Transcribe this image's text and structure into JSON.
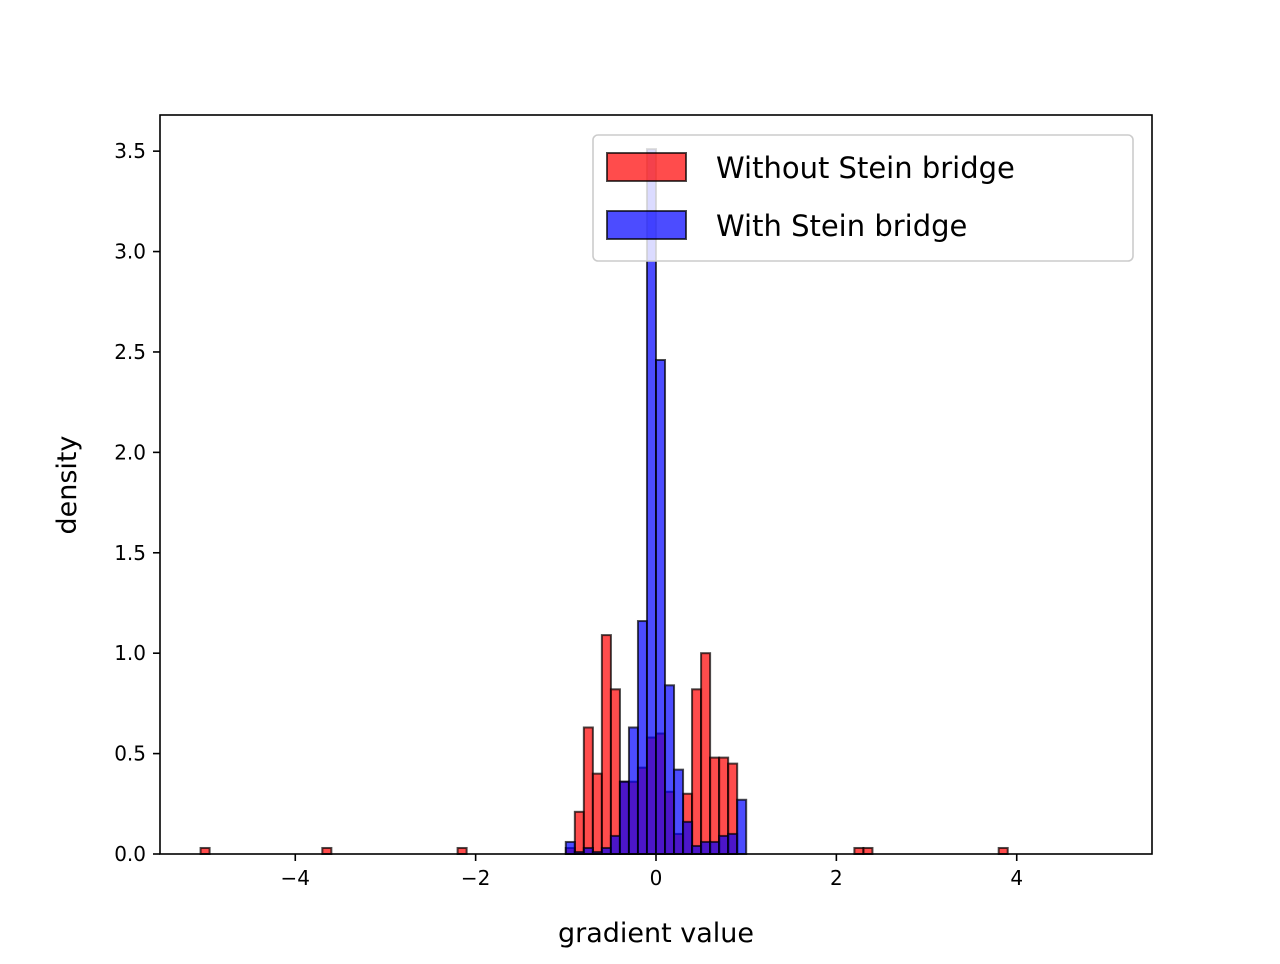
{
  "chart_data": {
    "type": "histogram",
    "xlabel": "gradient value",
    "ylabel": "density",
    "xlim": [
      -5.5,
      5.5
    ],
    "ylim": [
      0,
      3.68
    ],
    "x_ticks": [
      -4,
      -2,
      0,
      2,
      4
    ],
    "x_tick_labels": [
      "−4",
      "−2",
      "0",
      "2",
      "4"
    ],
    "y_ticks": [
      0,
      0.5,
      1,
      1.5,
      2,
      2.5,
      3,
      3.5
    ],
    "y_tick_labels": [
      "0.0",
      "0.5",
      "1.0",
      "1.5",
      "2.0",
      "2.5",
      "3.0",
      "3.5"
    ],
    "grid": false,
    "legend_position": "upper right",
    "series": [
      {
        "name": "Without Stein bridge",
        "color": "#ff0000",
        "bin_width": 0.1,
        "bins": [
          {
            "x": -5.0,
            "density": 0.03
          },
          {
            "x": -3.65,
            "density": 0.03
          },
          {
            "x": -2.15,
            "density": 0.03
          },
          {
            "x": -0.95,
            "density": 0.03
          },
          {
            "x": -0.85,
            "density": 0.21
          },
          {
            "x": -0.75,
            "density": 0.63
          },
          {
            "x": -0.65,
            "density": 0.4
          },
          {
            "x": -0.55,
            "density": 1.09
          },
          {
            "x": -0.45,
            "density": 0.82
          },
          {
            "x": -0.35,
            "density": 0.36
          },
          {
            "x": -0.25,
            "density": 0.36
          },
          {
            "x": -0.15,
            "density": 0.43
          },
          {
            "x": -0.05,
            "density": 0.58
          },
          {
            "x": 0.05,
            "density": 0.6
          },
          {
            "x": 0.15,
            "density": 0.31
          },
          {
            "x": 0.25,
            "density": 0.1
          },
          {
            "x": 0.35,
            "density": 0.3
          },
          {
            "x": 0.45,
            "density": 0.82
          },
          {
            "x": 0.55,
            "density": 1.0
          },
          {
            "x": 0.65,
            "density": 0.48
          },
          {
            "x": 0.75,
            "density": 0.48
          },
          {
            "x": 0.85,
            "density": 0.45
          },
          {
            "x": 2.25,
            "density": 0.03
          },
          {
            "x": 2.35,
            "density": 0.03
          },
          {
            "x": 3.85,
            "density": 0.03
          }
        ]
      },
      {
        "name": "With Stein bridge",
        "color": "#0000ff",
        "bin_width": 0.1,
        "bins": [
          {
            "x": -0.95,
            "density": 0.06
          },
          {
            "x": -0.85,
            "density": 0.01
          },
          {
            "x": -0.75,
            "density": 0.03
          },
          {
            "x": -0.65,
            "density": 0.01
          },
          {
            "x": -0.55,
            "density": 0.03
          },
          {
            "x": -0.45,
            "density": 0.09
          },
          {
            "x": -0.35,
            "density": 0.36
          },
          {
            "x": -0.25,
            "density": 0.63
          },
          {
            "x": -0.15,
            "density": 1.16
          },
          {
            "x": -0.05,
            "density": 3.51
          },
          {
            "x": 0.05,
            "density": 2.46
          },
          {
            "x": 0.15,
            "density": 0.84
          },
          {
            "x": 0.25,
            "density": 0.42
          },
          {
            "x": 0.35,
            "density": 0.16
          },
          {
            "x": 0.45,
            "density": 0.04
          },
          {
            "x": 0.55,
            "density": 0.06
          },
          {
            "x": 0.65,
            "density": 0.06
          },
          {
            "x": 0.75,
            "density": 0.09
          },
          {
            "x": 0.85,
            "density": 0.1
          },
          {
            "x": 0.95,
            "density": 0.27
          }
        ]
      }
    ]
  }
}
